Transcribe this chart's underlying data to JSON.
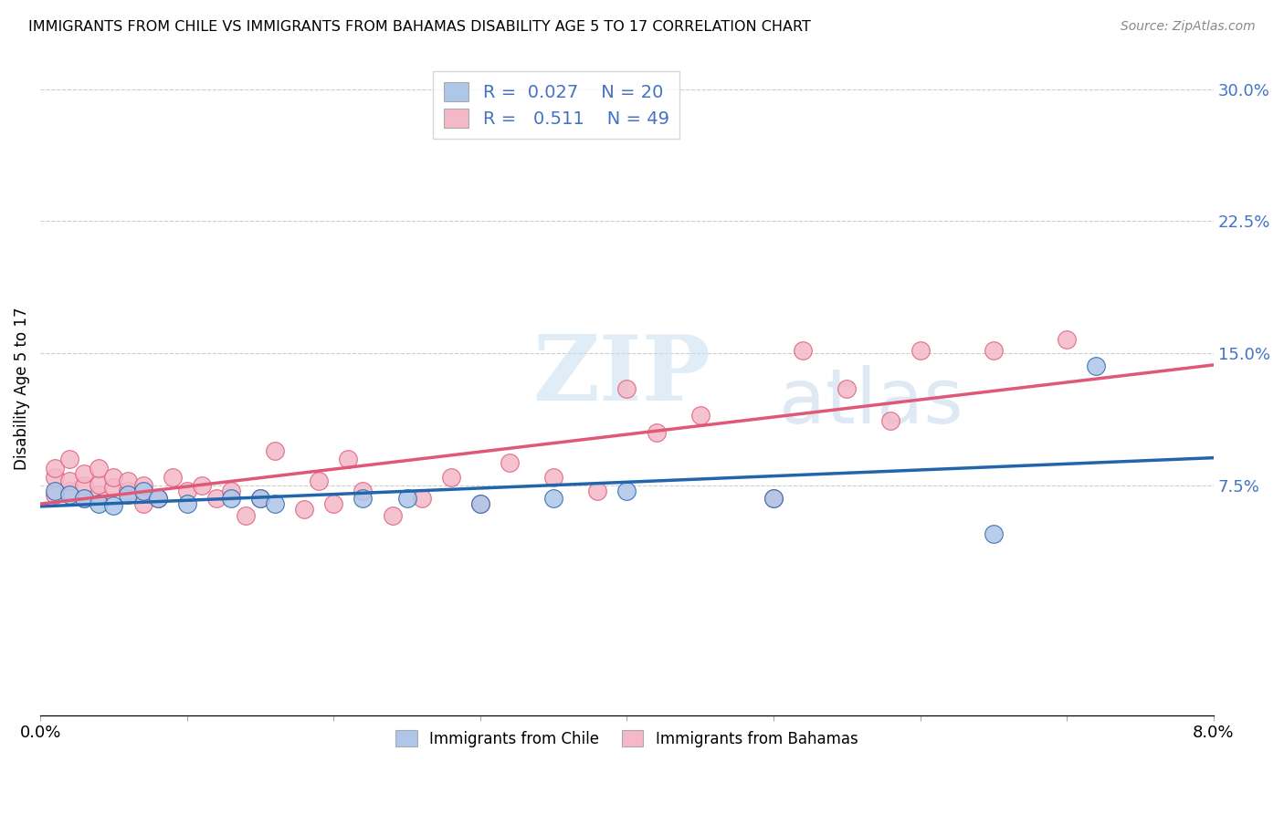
{
  "title": "IMMIGRANTS FROM CHILE VS IMMIGRANTS FROM BAHAMAS DISABILITY AGE 5 TO 17 CORRELATION CHART",
  "source": "Source: ZipAtlas.com",
  "ylabel": "Disability Age 5 to 17",
  "xlim": [
    0.0,
    0.08
  ],
  "ylim": [
    -0.055,
    0.315
  ],
  "ytick_right": [
    0.075,
    0.15,
    0.225,
    0.3
  ],
  "ytick_right_labels": [
    "7.5%",
    "15.0%",
    "22.5%",
    "30.0%"
  ],
  "legend_r_chile": "0.027",
  "legend_n_chile": "20",
  "legend_r_bahamas": "0.511",
  "legend_n_bahamas": "49",
  "chile_color": "#aec6e8",
  "bahamas_color": "#f4b8c8",
  "chile_line_color": "#2166ac",
  "bahamas_line_color": "#e05878",
  "watermark_zip": "ZIP",
  "watermark_atlas": "atlas",
  "chile_pts_x": [
    0.001,
    0.002,
    0.003,
    0.004,
    0.005,
    0.006,
    0.007,
    0.008,
    0.01,
    0.013,
    0.015,
    0.016,
    0.022,
    0.025,
    0.03,
    0.035,
    0.04,
    0.05,
    0.065,
    0.072
  ],
  "chile_pts_y": [
    0.072,
    0.07,
    0.068,
    0.065,
    0.064,
    0.07,
    0.072,
    0.068,
    0.065,
    0.068,
    0.068,
    0.065,
    0.068,
    0.068,
    0.065,
    0.068,
    0.072,
    0.068,
    0.048,
    0.143
  ],
  "bahamas_pts_x": [
    0.001,
    0.001,
    0.001,
    0.002,
    0.002,
    0.002,
    0.003,
    0.003,
    0.003,
    0.004,
    0.004,
    0.004,
    0.005,
    0.005,
    0.006,
    0.006,
    0.007,
    0.007,
    0.008,
    0.009,
    0.01,
    0.011,
    0.012,
    0.013,
    0.014,
    0.015,
    0.016,
    0.018,
    0.019,
    0.02,
    0.021,
    0.022,
    0.024,
    0.026,
    0.028,
    0.03,
    0.032,
    0.035,
    0.038,
    0.04,
    0.042,
    0.045,
    0.05,
    0.052,
    0.055,
    0.058,
    0.06,
    0.065,
    0.07
  ],
  "bahamas_pts_y": [
    0.07,
    0.08,
    0.085,
    0.072,
    0.078,
    0.09,
    0.068,
    0.075,
    0.082,
    0.07,
    0.076,
    0.085,
    0.074,
    0.08,
    0.072,
    0.078,
    0.065,
    0.075,
    0.068,
    0.08,
    0.072,
    0.075,
    0.068,
    0.072,
    0.058,
    0.068,
    0.095,
    0.062,
    0.078,
    0.065,
    0.09,
    0.072,
    0.058,
    0.068,
    0.08,
    0.065,
    0.088,
    0.08,
    0.072,
    0.13,
    0.105,
    0.115,
    0.068,
    0.152,
    0.13,
    0.112,
    0.152,
    0.152,
    0.158
  ]
}
